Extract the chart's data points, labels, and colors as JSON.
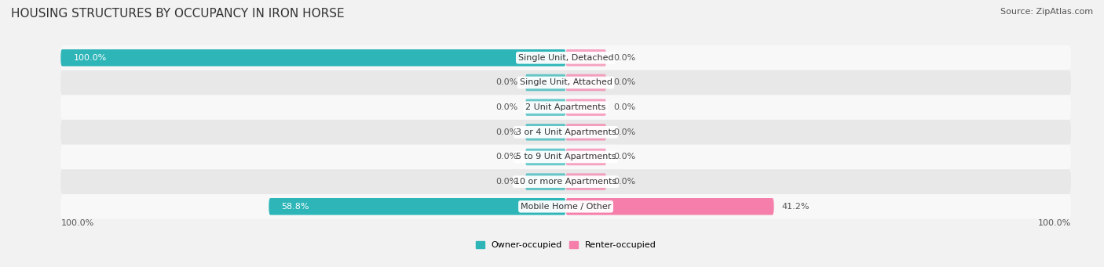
{
  "title": "HOUSING STRUCTURES BY OCCUPANCY IN IRON HORSE",
  "source": "Source: ZipAtlas.com",
  "categories": [
    "Single Unit, Detached",
    "Single Unit, Attached",
    "2 Unit Apartments",
    "3 or 4 Unit Apartments",
    "5 to 9 Unit Apartments",
    "10 or more Apartments",
    "Mobile Home / Other"
  ],
  "owner_pct": [
    100.0,
    0.0,
    0.0,
    0.0,
    0.0,
    0.0,
    58.8
  ],
  "renter_pct": [
    0.0,
    0.0,
    0.0,
    0.0,
    0.0,
    0.0,
    41.2
  ],
  "owner_color": "#2db5b8",
  "renter_color": "#f57faa",
  "bg_color": "#f2f2f2",
  "row_bg_color_odd": "#e8e8e8",
  "row_bg_color_even": "#f8f8f8",
  "axis_label_left": "100.0%",
  "axis_label_right": "100.0%",
  "legend_owner": "Owner-occupied",
  "legend_renter": "Renter-occupied",
  "title_fontsize": 11,
  "source_fontsize": 8,
  "bar_label_fontsize": 8,
  "category_fontsize": 8,
  "axis_fontsize": 8,
  "max_pct": 100.0,
  "small_bar_pct": 8.0
}
